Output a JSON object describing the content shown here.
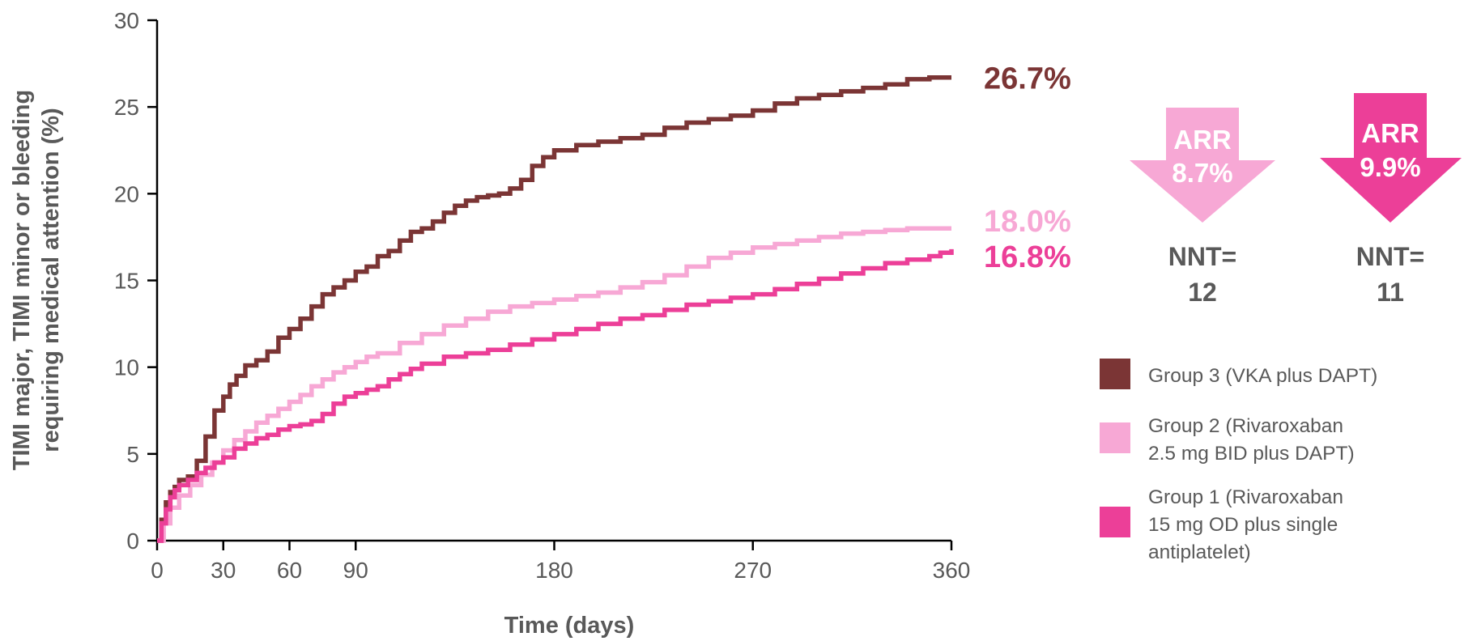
{
  "chart_data": {
    "type": "line",
    "title": "",
    "xlabel": "Time (days)",
    "ylabel_lines": [
      "TIMI major, TIMI minor or bleeding",
      "requiring medical attention (%)"
    ],
    "xlim": [
      0,
      360
    ],
    "ylim": [
      0,
      30
    ],
    "x_ticks": [
      0,
      30,
      60,
      90,
      180,
      270,
      360
    ],
    "y_ticks": [
      0,
      5,
      10,
      15,
      20,
      25,
      30
    ],
    "grid": false,
    "legend_position": "right",
    "series": [
      {
        "name": "Group 3 (VKA plus DAPT)",
        "legend_lines": [
          "Group 3 (VKA plus DAPT)"
        ],
        "color": "#7b3535",
        "end_label": "26.7%",
        "points": [
          [
            0,
            0
          ],
          [
            2,
            1.2
          ],
          [
            4,
            2.2
          ],
          [
            6,
            2.8
          ],
          [
            8,
            3.1
          ],
          [
            10,
            3.5
          ],
          [
            14,
            3.7
          ],
          [
            18,
            4.6
          ],
          [
            22,
            6.0
          ],
          [
            26,
            7.5
          ],
          [
            30,
            8.3
          ],
          [
            33,
            9.0
          ],
          [
            36,
            9.5
          ],
          [
            40,
            10.1
          ],
          [
            45,
            10.4
          ],
          [
            50,
            10.9
          ],
          [
            55,
            11.7
          ],
          [
            60,
            12.2
          ],
          [
            65,
            12.8
          ],
          [
            70,
            13.5
          ],
          [
            75,
            14.2
          ],
          [
            80,
            14.6
          ],
          [
            85,
            15.0
          ],
          [
            90,
            15.5
          ],
          [
            95,
            15.8
          ],
          [
            100,
            16.4
          ],
          [
            105,
            16.7
          ],
          [
            110,
            17.3
          ],
          [
            115,
            17.8
          ],
          [
            120,
            18.0
          ],
          [
            125,
            18.4
          ],
          [
            130,
            18.9
          ],
          [
            135,
            19.3
          ],
          [
            140,
            19.6
          ],
          [
            145,
            19.8
          ],
          [
            150,
            19.9
          ],
          [
            155,
            20.0
          ],
          [
            160,
            20.3
          ],
          [
            165,
            20.8
          ],
          [
            170,
            21.6
          ],
          [
            175,
            22.1
          ],
          [
            180,
            22.5
          ],
          [
            190,
            22.8
          ],
          [
            200,
            23.0
          ],
          [
            210,
            23.2
          ],
          [
            220,
            23.4
          ],
          [
            230,
            23.8
          ],
          [
            240,
            24.1
          ],
          [
            250,
            24.3
          ],
          [
            260,
            24.5
          ],
          [
            270,
            24.8
          ],
          [
            280,
            25.2
          ],
          [
            290,
            25.5
          ],
          [
            300,
            25.7
          ],
          [
            310,
            25.9
          ],
          [
            320,
            26.1
          ],
          [
            330,
            26.3
          ],
          [
            340,
            26.6
          ],
          [
            350,
            26.7
          ],
          [
            360,
            26.7
          ]
        ]
      },
      {
        "name": "Group 2 (Rivaroxaban 2.5 mg BID plus DAPT)",
        "legend_lines": [
          "Group 2 (Rivaroxaban",
          "2.5 mg BID plus DAPT)"
        ],
        "color": "#f7a8d5",
        "end_label": "18.0%",
        "points": [
          [
            0,
            0
          ],
          [
            3,
            1.0
          ],
          [
            6,
            1.9
          ],
          [
            10,
            2.6
          ],
          [
            15,
            3.2
          ],
          [
            20,
            3.8
          ],
          [
            25,
            4.5
          ],
          [
            30,
            5.2
          ],
          [
            35,
            5.8
          ],
          [
            40,
            6.3
          ],
          [
            45,
            6.8
          ],
          [
            50,
            7.2
          ],
          [
            55,
            7.6
          ],
          [
            60,
            8.0
          ],
          [
            65,
            8.4
          ],
          [
            70,
            8.9
          ],
          [
            75,
            9.3
          ],
          [
            80,
            9.7
          ],
          [
            85,
            10.0
          ],
          [
            90,
            10.3
          ],
          [
            95,
            10.6
          ],
          [
            100,
            10.8
          ],
          [
            110,
            11.4
          ],
          [
            120,
            11.9
          ],
          [
            130,
            12.4
          ],
          [
            140,
            12.8
          ],
          [
            150,
            13.2
          ],
          [
            160,
            13.5
          ],
          [
            170,
            13.7
          ],
          [
            180,
            13.9
          ],
          [
            190,
            14.1
          ],
          [
            200,
            14.3
          ],
          [
            210,
            14.6
          ],
          [
            220,
            14.9
          ],
          [
            230,
            15.3
          ],
          [
            240,
            15.8
          ],
          [
            250,
            16.3
          ],
          [
            260,
            16.6
          ],
          [
            270,
            16.9
          ],
          [
            280,
            17.1
          ],
          [
            290,
            17.3
          ],
          [
            300,
            17.5
          ],
          [
            310,
            17.7
          ],
          [
            320,
            17.8
          ],
          [
            330,
            17.9
          ],
          [
            340,
            18.0
          ],
          [
            350,
            18.0
          ],
          [
            360,
            18.0
          ]
        ]
      },
      {
        "name": "Group 1 (Rivaroxaban 15 mg OD plus single antiplatelet)",
        "legend_lines": [
          "Group 1 (Rivaroxaban",
          "15 mg OD plus single",
          "antiplatelet)"
        ],
        "color": "#ec3f98",
        "end_label": "16.8%",
        "points": [
          [
            0,
            0
          ],
          [
            2,
            1.0
          ],
          [
            4,
            1.8
          ],
          [
            6,
            2.5
          ],
          [
            8,
            2.9
          ],
          [
            10,
            3.2
          ],
          [
            14,
            3.5
          ],
          [
            18,
            3.9
          ],
          [
            22,
            4.2
          ],
          [
            26,
            4.5
          ],
          [
            30,
            4.8
          ],
          [
            35,
            5.3
          ],
          [
            40,
            5.6
          ],
          [
            45,
            5.9
          ],
          [
            50,
            6.1
          ],
          [
            55,
            6.4
          ],
          [
            60,
            6.6
          ],
          [
            65,
            6.7
          ],
          [
            70,
            6.9
          ],
          [
            75,
            7.3
          ],
          [
            80,
            7.9
          ],
          [
            85,
            8.3
          ],
          [
            90,
            8.5
          ],
          [
            95,
            8.7
          ],
          [
            100,
            8.9
          ],
          [
            105,
            9.3
          ],
          [
            110,
            9.6
          ],
          [
            115,
            9.9
          ],
          [
            120,
            10.2
          ],
          [
            130,
            10.6
          ],
          [
            140,
            10.8
          ],
          [
            150,
            11.0
          ],
          [
            160,
            11.3
          ],
          [
            170,
            11.6
          ],
          [
            180,
            11.9
          ],
          [
            190,
            12.2
          ],
          [
            200,
            12.5
          ],
          [
            210,
            12.8
          ],
          [
            220,
            13.0
          ],
          [
            230,
            13.3
          ],
          [
            240,
            13.6
          ],
          [
            250,
            13.8
          ],
          [
            260,
            14.0
          ],
          [
            270,
            14.2
          ],
          [
            280,
            14.5
          ],
          [
            290,
            14.8
          ],
          [
            300,
            15.1
          ],
          [
            310,
            15.4
          ],
          [
            320,
            15.7
          ],
          [
            330,
            16.0
          ],
          [
            340,
            16.2
          ],
          [
            350,
            16.4
          ],
          [
            355,
            16.6
          ],
          [
            360,
            16.8
          ]
        ]
      }
    ],
    "annotations": [
      {
        "arrow_label": "ARR",
        "arrow_value": "8.7%",
        "color": "#f7a8d5",
        "nnt_label": "NNT=",
        "nnt_value": "12"
      },
      {
        "arrow_label": "ARR",
        "arrow_value": "9.9%",
        "color": "#ec3f98",
        "nnt_label": "NNT=",
        "nnt_value": "11"
      }
    ]
  }
}
